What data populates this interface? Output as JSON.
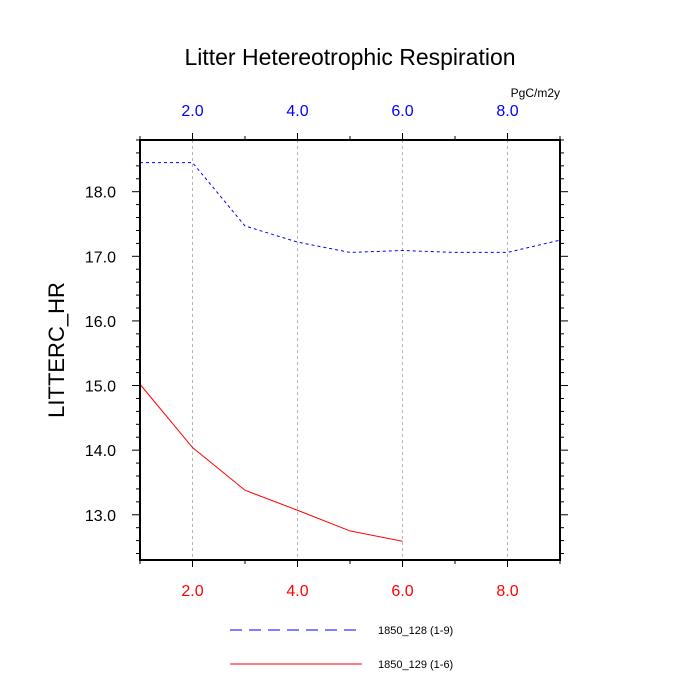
{
  "chart_data": {
    "type": "line",
    "title": "Litter Hetereotrophic Respiration",
    "ylabel": "LITTERC_HR",
    "top_axis_unit": "PgC/m2y",
    "xlim": [
      1,
      9
    ],
    "ylim": [
      12.3,
      18.8
    ],
    "x_ticks": [
      2,
      4,
      6,
      8
    ],
    "x_tick_labels": [
      "2.0",
      "4.0",
      "6.0",
      "8.0"
    ],
    "y_ticks": [
      13,
      14,
      15,
      16,
      17,
      18
    ],
    "y_tick_labels": [
      "13.0",
      "14.0",
      "15.0",
      "16.0",
      "17.0",
      "18.0"
    ],
    "bottom_axis_color": "#ff0000",
    "top_axis_color": "#0000ff",
    "grid": "vertical dashed at x ticks",
    "legend_position": "bottom",
    "series": [
      {
        "name": "1850_128 (1-9)",
        "color": "#0000ff",
        "style": "dashed",
        "x": [
          1,
          2,
          3,
          4,
          5,
          6,
          7,
          8,
          9
        ],
        "values": [
          18.45,
          18.45,
          17.47,
          17.22,
          17.06,
          17.09,
          17.06,
          17.06,
          17.25
        ]
      },
      {
        "name": "1850_129 (1-6)",
        "color": "#ff0000",
        "style": "solid",
        "x": [
          1,
          2,
          3,
          4,
          5,
          6
        ],
        "values": [
          15.02,
          14.04,
          13.38,
          13.07,
          12.75,
          12.59
        ]
      }
    ]
  }
}
